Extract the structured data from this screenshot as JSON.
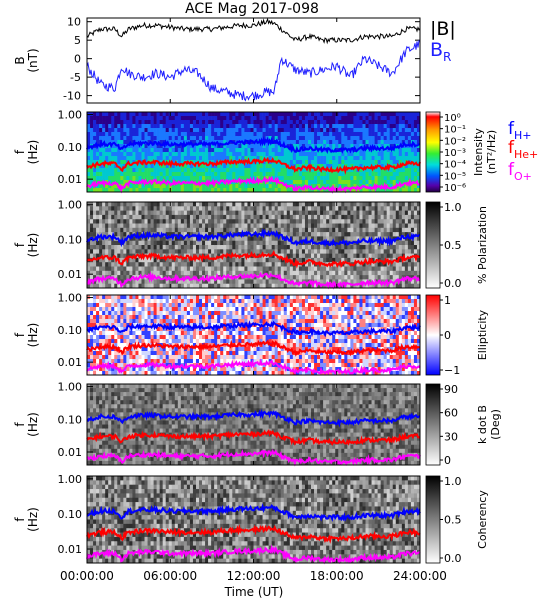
{
  "title": "ACE Mag 2017-098",
  "x_axis": {
    "label": "Time (UT)",
    "ticks": [
      "00:00:00",
      "06:00:00",
      "12:00:00",
      "18:00:00",
      "24:00:00"
    ],
    "range_hours": [
      0,
      24
    ]
  },
  "legend": {
    "b_total": "|B|",
    "b_total_color": "#000000",
    "b_radial": "B",
    "b_radial_sub": "R",
    "b_radial_color": "#2020ff",
    "f_hplus": "f",
    "f_hplus_sub": "H+",
    "f_hplus_color": "#0000ff",
    "f_heplus": "f",
    "f_heplus_sub": "He+",
    "f_heplus_color": "#ff0000",
    "f_oplus": "f",
    "f_oplus_sub": "O+",
    "f_oplus_color": "#ff00ff"
  },
  "panels": [
    {
      "ylabel_top": "B",
      "ylabel_bottom": "(nT)",
      "yticks": [
        "10",
        "5",
        "0",
        "-5",
        "-10"
      ]
    },
    {
      "ylabel_top": "f",
      "ylabel_bottom": "(Hz)",
      "yticks": [
        "1.00",
        "0.10",
        "0.01"
      ],
      "colorbar": {
        "label1": "Intensity",
        "label2": "(nT²/Hz)",
        "ticks": [
          "10⁰",
          "10⁻¹",
          "10⁻²",
          "10⁻³",
          "10⁻⁴",
          "10⁻⁵",
          "10⁻⁶"
        ]
      }
    },
    {
      "ylabel_top": "f",
      "ylabel_bottom": "(Hz)",
      "yticks": [
        "1.00",
        "0.10",
        "0.01"
      ],
      "colorbar": {
        "label1": "% Polarization",
        "label2": "",
        "ticks": [
          "1.0",
          "0.5",
          "0.0"
        ]
      }
    },
    {
      "ylabel_top": "f",
      "ylabel_bottom": "(Hz)",
      "yticks": [
        "1.00",
        "0.10",
        "0.01"
      ],
      "colorbar": {
        "label1": "Ellipticity",
        "label2": "",
        "ticks": [
          "1",
          "0",
          "−1"
        ]
      }
    },
    {
      "ylabel_top": "f",
      "ylabel_bottom": "(Hz)",
      "yticks": [
        "1.00",
        "0.10",
        "0.01"
      ],
      "colorbar": {
        "label1": "k dot B",
        "label2": "(Deg)",
        "ticks": [
          "90",
          "60",
          "30",
          "0"
        ]
      }
    },
    {
      "ylabel_top": "f",
      "ylabel_bottom": "(Hz)",
      "yticks": [
        "1.00",
        "0.10",
        "0.01"
      ],
      "colorbar": {
        "label1": "Coherency",
        "label2": "",
        "ticks": [
          "1.0",
          "0.5",
          "0.0"
        ]
      }
    }
  ],
  "chart_data": [
    {
      "type": "line",
      "panel": "magnetic field",
      "ylabel": "B (nT)",
      "ylim": [
        -12,
        11
      ],
      "x_hours": [
        0,
        1,
        2,
        2.5,
        3,
        4,
        5,
        6,
        7,
        8,
        9,
        10,
        11,
        12,
        13,
        13.5,
        14,
        15,
        16,
        17,
        18,
        19,
        20,
        21,
        22,
        23,
        24
      ],
      "series": [
        {
          "name": "|B|",
          "values": [
            6,
            8,
            8,
            6,
            8,
            9,
            9,
            8.5,
            8,
            8,
            8,
            8.5,
            9,
            9,
            10,
            9.5,
            8,
            5,
            6,
            5,
            5,
            5,
            6,
            6,
            6,
            8,
            8
          ]
        },
        {
          "name": "B_R",
          "values": [
            -2,
            -7,
            -8,
            -2,
            -4,
            -5,
            -4,
            -5,
            -3,
            -4,
            -8,
            -9,
            -10,
            -10,
            -9,
            -9,
            0,
            -3,
            -4,
            -3,
            -2,
            -5,
            0,
            -2,
            -4,
            2,
            4
          ]
        }
      ]
    },
    {
      "type": "line",
      "panel": "ion gyrofrequencies (repeated in each spectral panel)",
      "ylabel": "f (Hz)",
      "ylim": [
        0.004,
        1.2
      ],
      "log_y": true,
      "x_hours": [
        0,
        1,
        2,
        2.5,
        3,
        4,
        5,
        6,
        7,
        8,
        9,
        10,
        11,
        12,
        13,
        13.5,
        14,
        15,
        16,
        17,
        18,
        19,
        20,
        21,
        22,
        23,
        24
      ],
      "series": [
        {
          "name": "f_H+",
          "values": [
            0.095,
            0.12,
            0.12,
            0.08,
            0.12,
            0.13,
            0.13,
            0.12,
            0.12,
            0.12,
            0.12,
            0.13,
            0.14,
            0.14,
            0.15,
            0.15,
            0.12,
            0.08,
            0.09,
            0.08,
            0.08,
            0.08,
            0.09,
            0.09,
            0.09,
            0.12,
            0.12
          ]
        },
        {
          "name": "f_He+",
          "values": [
            0.024,
            0.03,
            0.03,
            0.02,
            0.03,
            0.033,
            0.033,
            0.03,
            0.03,
            0.03,
            0.03,
            0.033,
            0.035,
            0.035,
            0.038,
            0.038,
            0.03,
            0.02,
            0.023,
            0.02,
            0.02,
            0.02,
            0.023,
            0.023,
            0.023,
            0.03,
            0.03
          ]
        },
        {
          "name": "f_O+",
          "values": [
            0.006,
            0.0075,
            0.0075,
            0.005,
            0.0075,
            0.0082,
            0.0082,
            0.0075,
            0.0075,
            0.0075,
            0.0075,
            0.0082,
            0.0088,
            0.0088,
            0.0095,
            0.0095,
            0.0075,
            0.005,
            0.0057,
            0.005,
            0.005,
            0.005,
            0.0057,
            0.0057,
            0.0057,
            0.0075,
            0.0075
          ]
        }
      ]
    }
  ]
}
